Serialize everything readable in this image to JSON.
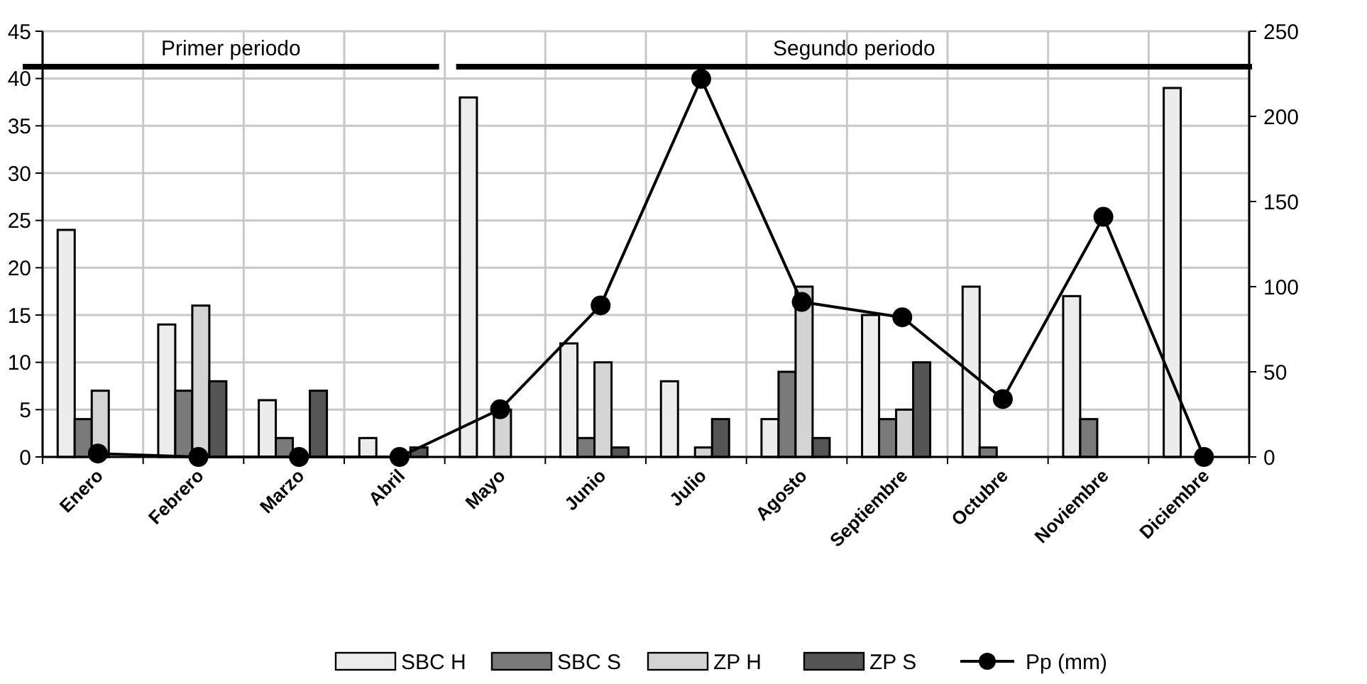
{
  "chart_data": {
    "type": "bar",
    "categories": [
      "Enero",
      "Febrero",
      "Marzo",
      "Abril",
      "Mayo",
      "Junio",
      "Julio",
      "Agosto",
      "Septiembre",
      "Octubre",
      "Noviembre",
      "Diciembre"
    ],
    "series": [
      {
        "name": "SBC H",
        "color": "#ececec",
        "values": [
          24,
          14,
          6,
          2,
          38,
          12,
          8,
          4,
          15,
          18,
          17,
          39
        ]
      },
      {
        "name": "SBC S",
        "color": "#7a7a7a",
        "values": [
          4,
          7,
          2,
          0,
          0,
          2,
          0,
          9,
          4,
          1,
          4,
          0
        ]
      },
      {
        "name": "ZP H",
        "color": "#d4d4d4",
        "values": [
          7,
          16,
          0,
          0,
          5,
          10,
          1,
          18,
          5,
          0,
          0,
          0
        ]
      },
      {
        "name": "ZP S",
        "color": "#555555",
        "values": [
          0,
          8,
          7,
          1,
          0,
          1,
          4,
          2,
          10,
          0,
          0,
          0
        ]
      },
      {
        "name": "Pp (mm)",
        "type": "line",
        "axis": "y2",
        "color": "#000000",
        "marker": "circle",
        "values": [
          2,
          0,
          0,
          0,
          28,
          89,
          222,
          91,
          82,
          34,
          141,
          0
        ]
      }
    ],
    "ylim": [
      0,
      45
    ],
    "yticks": [
      0,
      5,
      10,
      15,
      20,
      25,
      30,
      35,
      40,
      45
    ],
    "y2lim": [
      0,
      250
    ],
    "y2ticks": [
      0,
      50,
      100,
      150,
      200,
      250
    ],
    "annotations": [
      "Primer periodo",
      "Segundo periodo"
    ],
    "grid": true,
    "legend": "bottom"
  }
}
